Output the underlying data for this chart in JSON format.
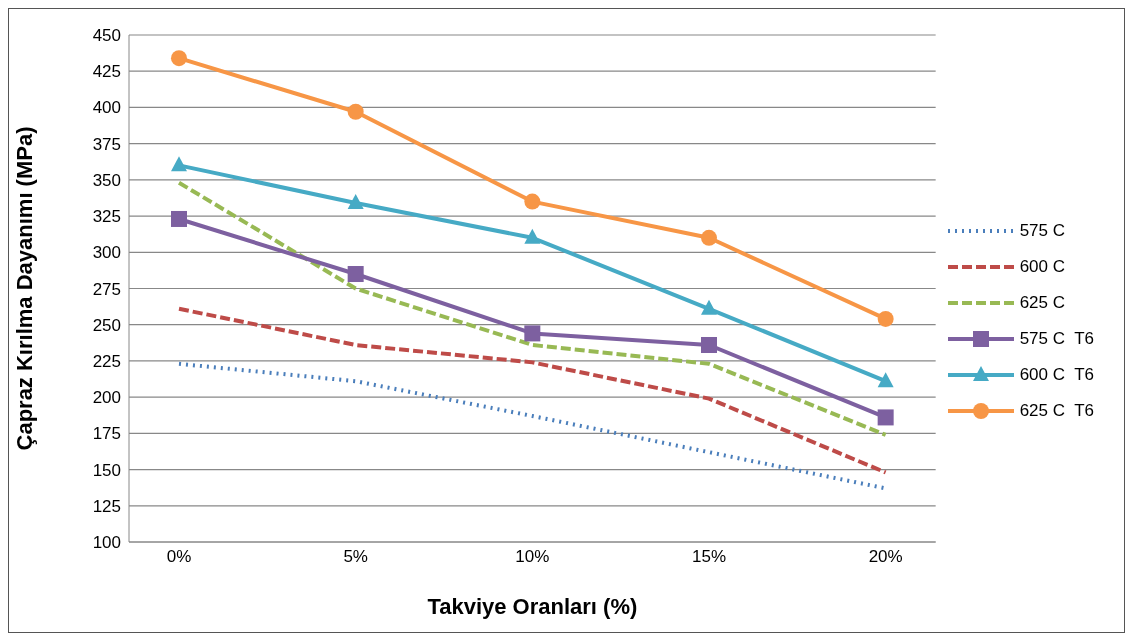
{
  "chart_data": {
    "type": "line",
    "xlabel": "Takviye Oranları (%)",
    "ylabel": "Çapraz Kırılma Dayanımı (MPa)",
    "categories": [
      "0%",
      "5%",
      "10%",
      "15%",
      "20%"
    ],
    "series": [
      {
        "name": "575 C",
        "color": "#4a7ebb",
        "values": [
          223,
          211,
          187,
          162,
          137
        ],
        "marker": "none",
        "line_style": "dotted"
      },
      {
        "name": "600 C",
        "color": "#be4b48",
        "values": [
          261,
          236,
          224,
          199,
          148
        ],
        "marker": "none",
        "line_style": "dashed"
      },
      {
        "name": "625 C",
        "color": "#98b954",
        "values": [
          348,
          275,
          236,
          223,
          174
        ],
        "marker": "none",
        "line_style": "dashed"
      },
      {
        "name": "575 C  T6",
        "color": "#7d60a0",
        "values": [
          323,
          285,
          244,
          236,
          186
        ],
        "marker": "square",
        "line_style": "solid"
      },
      {
        "name": "600 C  T6",
        "color": "#46aac5",
        "values": [
          360,
          334,
          310,
          261,
          211
        ],
        "marker": "triangle",
        "line_style": "solid"
      },
      {
        "name": "625 C  T6",
        "color": "#f79646",
        "values": [
          434,
          397,
          335,
          310,
          254
        ],
        "marker": "circle",
        "line_style": "solid"
      }
    ],
    "ylim": [
      100,
      450
    ],
    "yticks": [
      100,
      125,
      150,
      175,
      200,
      225,
      250,
      275,
      300,
      325,
      350,
      375,
      400,
      425,
      450
    ],
    "grid": "y",
    "legend": "right"
  }
}
